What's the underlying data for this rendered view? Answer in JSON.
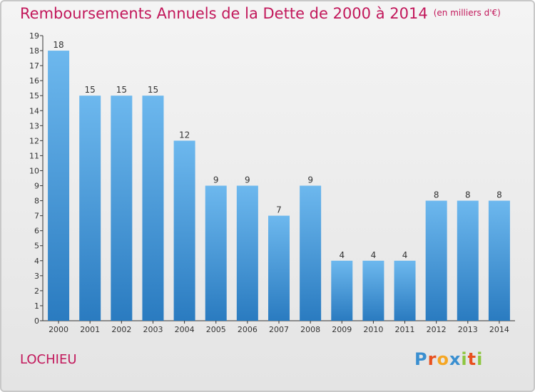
{
  "header": {
    "title": "Remboursements Annuels de la Dette de 2000 à 2014",
    "unit": "(en milliers d'€)"
  },
  "footer": {
    "town": "LOCHIEU",
    "logo_text": "Proxiti"
  },
  "colors": {
    "bar_top": "#6db8ee",
    "bar_bottom": "#2a7bc0",
    "title": "#c2185b"
  },
  "chart_data": {
    "type": "bar",
    "categories": [
      "2000",
      "2001",
      "2002",
      "2003",
      "2004",
      "2005",
      "2006",
      "2007",
      "2008",
      "2009",
      "2010",
      "2011",
      "2012",
      "2013",
      "2014"
    ],
    "values": [
      18,
      15,
      15,
      15,
      12,
      9,
      9,
      7,
      9,
      4,
      4,
      4,
      8,
      8,
      8
    ],
    "ylim": [
      0,
      19
    ],
    "yticks": [
      0,
      1,
      2,
      3,
      4,
      5,
      6,
      7,
      8,
      9,
      10,
      11,
      12,
      13,
      14,
      15,
      16,
      17,
      18,
      19
    ],
    "grid": false,
    "legend": "none"
  }
}
